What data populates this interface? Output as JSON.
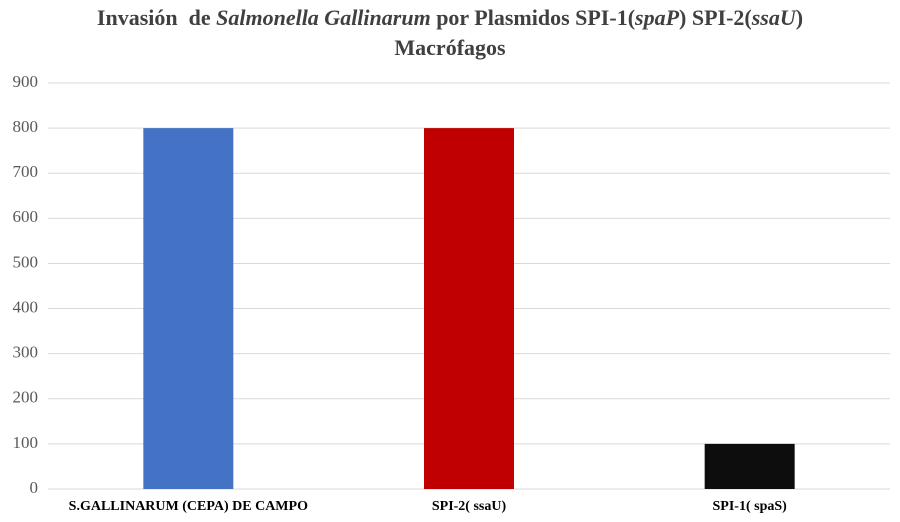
{
  "chart_data": {
    "type": "bar",
    "title": [
      {
        "text": "Invasión  de ",
        "italic": false
      },
      {
        "text": "Salmonella Gallinarum",
        "italic": true
      },
      {
        "text": " por Plasmidos SPI-1(",
        "italic": false
      },
      {
        "text": "spaP",
        "italic": true
      },
      {
        "text": ") SPI-2(",
        "italic": false
      },
      {
        "text": "ssaU",
        "italic": true
      },
      {
        "text": ")",
        "italic": false
      }
    ],
    "subtitle": "Macrófagos",
    "categories": [
      "S.GALLINARUM (CEPA) DE CAMPO",
      "SPI-2( ssaU)",
      "SPI-1( spaS)"
    ],
    "values": [
      800,
      800,
      100
    ],
    "colors": [
      "#4472c4",
      "#c00000",
      "#0d0d0d"
    ],
    "ylim": [
      0,
      900
    ],
    "yticks": [
      0,
      100,
      200,
      300,
      400,
      500,
      600,
      700,
      800,
      900
    ],
    "grid": true
  }
}
